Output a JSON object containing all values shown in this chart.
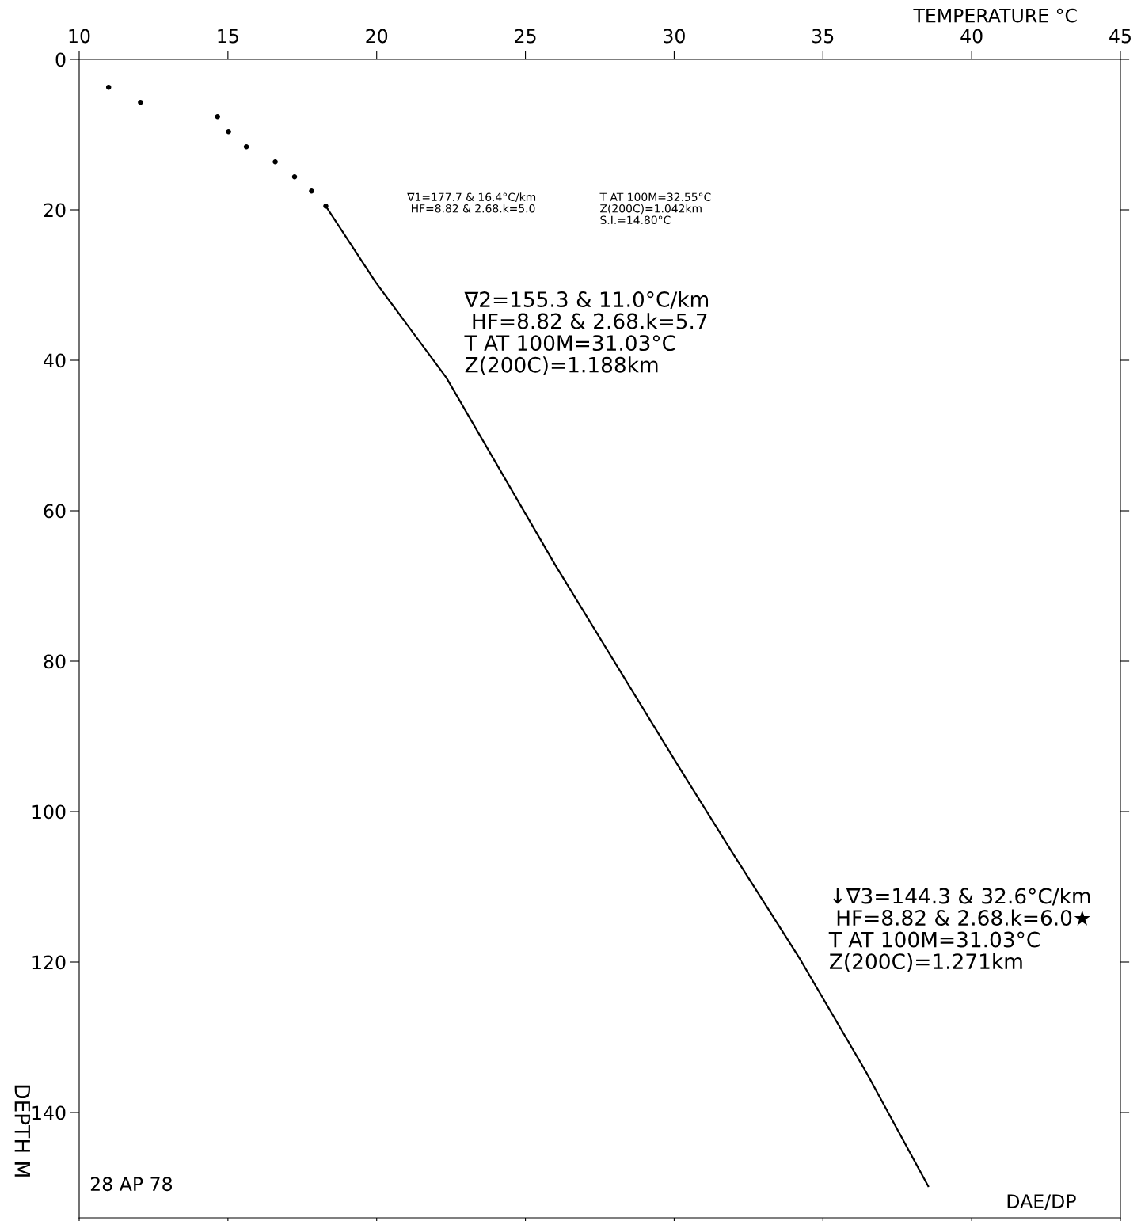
{
  "chart_data": {
    "type": "line",
    "xlabel": "TEMPERATURE °C",
    "ylabel": "DEPTH M",
    "xlim": [
      10,
      45
    ],
    "xticks": [
      10,
      15,
      20,
      25,
      30,
      35,
      40,
      45
    ],
    "ylim": [
      154,
      0
    ],
    "yticks": [
      0,
      20,
      40,
      60,
      80,
      100,
      120,
      140
    ],
    "series": [
      {
        "type": "scatter",
        "color": "#000000",
        "x": [
          10.99,
          12.06,
          14.65,
          15.02,
          15.62,
          16.59,
          17.24,
          17.81,
          18.29
        ],
        "values": [
          3.7,
          5.7,
          7.6,
          9.6,
          11.6,
          13.6,
          15.6,
          17.5,
          19.5
        ]
      },
      {
        "color": "#000000",
        "x": [
          18.29,
          19.98,
          22.34,
          26.0,
          30.18,
          31.95,
          34.23,
          36.45,
          38.54
        ],
        "values": [
          19.5,
          29.7,
          42.3,
          67.2,
          94.2,
          105.4,
          119.6,
          134.6,
          149.8
        ]
      }
    ],
    "annotations": [
      "∇1=177.7 & 16.4°C/km\n HF=8.82 & 2.68.k=5.0",
      "T AT 100M=32.55°C\nZ(200C)=1.042km\nS.I.=14.80°C",
      "∇2=155.3 & 11.0°C/km\n HF=8.82 & 2.68.k=5.7\nT AT 100M=31.03°C\nZ(200C)=1.188km",
      "↓∇3=144.3 & 32.6°C/km\n HF=8.82 & 2.68.k=6.0★\nT AT 100M=31.03°C\nZ(200C)=1.271km",
      "28 AP 78",
      "DAE/DP"
    ]
  }
}
